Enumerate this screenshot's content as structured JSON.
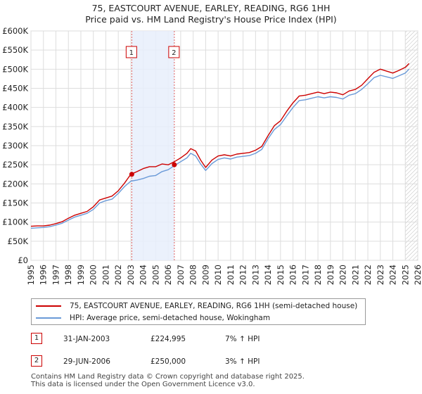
{
  "chart_data": {
    "type": "line",
    "title": "75, EASTCOURT AVENUE, EARLEY, READING, RG6 1HH",
    "subtitle": "Price paid vs. HM Land Registry's House Price Index (HPI)",
    "ylim": [
      0,
      600000
    ],
    "xlim": [
      1995,
      2026
    ],
    "y_ticks": [
      0,
      50000,
      100000,
      150000,
      200000,
      250000,
      300000,
      350000,
      400000,
      450000,
      500000,
      550000,
      600000
    ],
    "y_tick_labels": [
      "£0",
      "£50K",
      "£100K",
      "£150K",
      "£200K",
      "£250K",
      "£300K",
      "£350K",
      "£400K",
      "£450K",
      "£500K",
      "£550K",
      "£600K"
    ],
    "x_ticks": [
      1995,
      1996,
      1997,
      1998,
      1999,
      2000,
      2001,
      2002,
      2003,
      2004,
      2005,
      2006,
      2007,
      2008,
      2009,
      2010,
      2011,
      2012,
      2013,
      2014,
      2015,
      2016,
      2017,
      2018,
      2019,
      2020,
      2021,
      2022,
      2023,
      2024,
      2025,
      2026
    ],
    "x_tick_labels": [
      "1995",
      "1996",
      "1997",
      "1998",
      "1999",
      "2000",
      "2001",
      "2002",
      "2003",
      "2004",
      "2005",
      "2006",
      "2007",
      "2008",
      "2009",
      "2010",
      "2011",
      "2012",
      "2013",
      "2014",
      "2015",
      "2016",
      "2017",
      "2018",
      "2019",
      "2020",
      "2021",
      "2022",
      "2023",
      "2024",
      "2025",
      "2026"
    ],
    "series": [
      {
        "name": "75, EASTCOURT AVENUE, EARLEY, READING, RG6 1HH (semi-detached house)",
        "color": "#cc0000",
        "x": [
          1995.0,
          1995.5,
          1996.0,
          1996.5,
          1997.0,
          1997.5,
          1998.0,
          1998.5,
          1999.0,
          1999.5,
          2000.0,
          2000.5,
          2001.0,
          2001.5,
          2002.0,
          2002.5,
          2003.0,
          2003.5,
          2004.0,
          2004.5,
          2005.0,
          2005.5,
          2006.0,
          2006.5,
          2007.0,
          2007.5,
          2007.8,
          2008.2,
          2008.6,
          2009.0,
          2009.5,
          2010.0,
          2010.5,
          2011.0,
          2011.5,
          2012.0,
          2012.5,
          2013.0,
          2013.5,
          2014.0,
          2014.5,
          2015.0,
          2015.5,
          2016.0,
          2016.5,
          2017.0,
          2017.5,
          2018.0,
          2018.5,
          2019.0,
          2019.5,
          2020.0,
          2020.5,
          2021.0,
          2021.5,
          2022.0,
          2022.5,
          2023.0,
          2023.5,
          2024.0,
          2024.5,
          2025.0,
          2025.3
        ],
        "values": [
          89000,
          90000,
          90000,
          92000,
          96000,
          101000,
          110000,
          118000,
          123000,
          128000,
          140000,
          158000,
          163000,
          168000,
          182000,
          202000,
          224995,
          232000,
          240000,
          245000,
          245000,
          252000,
          250000,
          258000,
          268000,
          280000,
          292000,
          286000,
          262000,
          243000,
          262000,
          273000,
          276000,
          273000,
          278000,
          280000,
          282000,
          288000,
          298000,
          326000,
          352000,
          365000,
          390000,
          412000,
          430000,
          432000,
          436000,
          440000,
          436000,
          440000,
          438000,
          433000,
          443000,
          447000,
          458000,
          475000,
          492000,
          500000,
          495000,
          490000,
          497000,
          505000,
          515000
        ]
      },
      {
        "name": "HPI: Average price, semi-detached house, Wokingham",
        "color": "#6a9ad8",
        "x": [
          1995.0,
          1995.5,
          1996.0,
          1996.5,
          1997.0,
          1997.5,
          1998.0,
          1998.5,
          1999.0,
          1999.5,
          2000.0,
          2000.5,
          2001.0,
          2001.5,
          2002.0,
          2002.5,
          2003.0,
          2003.5,
          2004.0,
          2004.5,
          2005.0,
          2005.5,
          2006.0,
          2006.5,
          2007.0,
          2007.5,
          2007.8,
          2008.2,
          2008.6,
          2009.0,
          2009.5,
          2010.0,
          2010.5,
          2011.0,
          2011.5,
          2012.0,
          2012.5,
          2013.0,
          2013.5,
          2014.0,
          2014.5,
          2015.0,
          2015.5,
          2016.0,
          2016.5,
          2017.0,
          2017.5,
          2018.0,
          2018.5,
          2019.0,
          2019.5,
          2020.0,
          2020.5,
          2021.0,
          2021.5,
          2022.0,
          2022.5,
          2023.0,
          2023.5,
          2024.0,
          2024.5,
          2025.0,
          2025.3
        ],
        "values": [
          84000,
          85000,
          86000,
          88000,
          92000,
          97000,
          105000,
          113000,
          118000,
          123000,
          133000,
          150000,
          156000,
          160000,
          175000,
          193000,
          207000,
          210000,
          214000,
          220000,
          222000,
          232000,
          237000,
          248000,
          258000,
          268000,
          280000,
          273000,
          252000,
          235000,
          253000,
          264000,
          268000,
          265000,
          270000,
          272000,
          274000,
          280000,
          290000,
          318000,
          342000,
          355000,
          378000,
          400000,
          418000,
          420000,
          424000,
          428000,
          425000,
          428000,
          426000,
          422000,
          432000,
          436000,
          447000,
          462000,
          478000,
          484000,
          480000,
          476000,
          483000,
          490000,
          500000
        ]
      }
    ],
    "sale_markers": [
      {
        "label": "1",
        "x": 2003.08,
        "value": 224995
      },
      {
        "label": "2",
        "x": 2006.49,
        "value": 250000
      }
    ],
    "shaded_region": [
      2003.08,
      2006.49
    ],
    "hatched_from": 2025.0,
    "grid": true
  },
  "legend": {
    "property_label": "75, EASTCOURT AVENUE, EARLEY, READING, RG6 1HH (semi-detached house)",
    "hpi_label": "HPI: Average price, semi-detached house, Wokingham",
    "property_color": "#cc0000",
    "hpi_color": "#6a9ad8"
  },
  "sales": [
    {
      "num": "1",
      "date": "31-JAN-2003",
      "price": "£224,995",
      "hpi": "7% ↑ HPI"
    },
    {
      "num": "2",
      "date": "29-JUN-2006",
      "price": "£250,000",
      "hpi": "3% ↑ HPI"
    }
  ],
  "footer": {
    "line1": "Contains HM Land Registry data © Crown copyright and database right 2025.",
    "line2": "This data is licensed under the Open Government Licence v3.0."
  }
}
